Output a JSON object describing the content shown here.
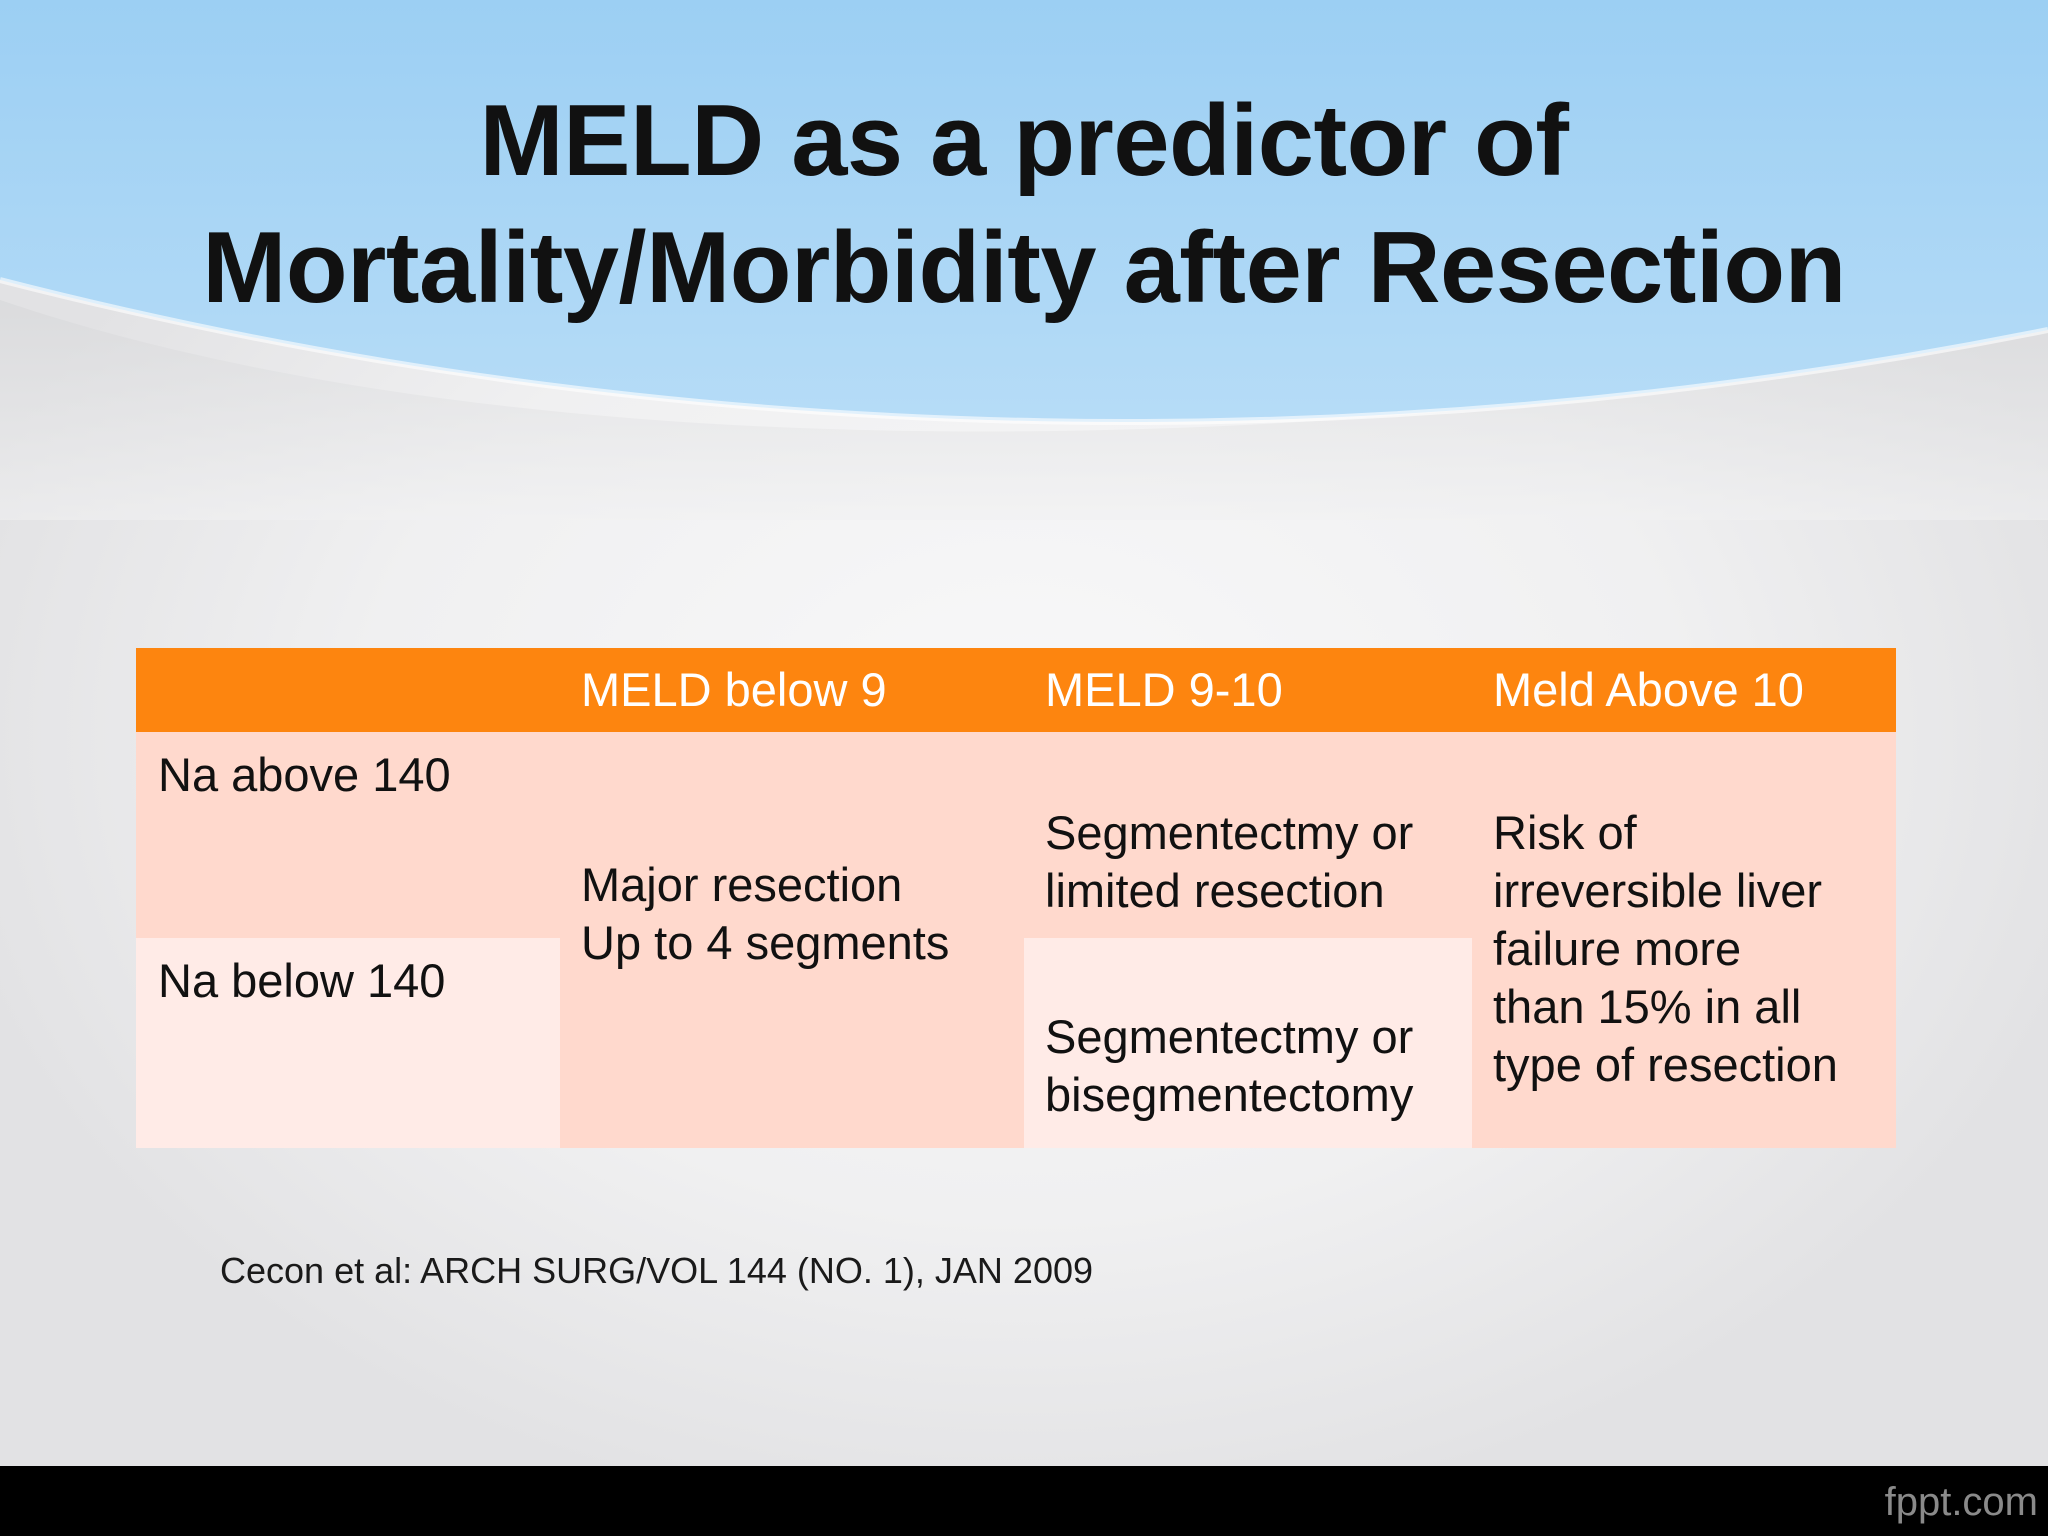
{
  "slide": {
    "title_line1": "MELD as a predictor of",
    "title_line2": "Mortality/Morbidity after Resection",
    "accent_color": "#fd850f",
    "header_bg_color": "#a9d5f7"
  },
  "table": {
    "columns": [
      "",
      "MELD below 9",
      "MELD 9-10",
      "Meld Above 10"
    ],
    "rows": [
      {
        "label": "Na above 140"
      },
      {
        "label": "Na below 140"
      }
    ],
    "meld_below_9": [
      "Major resection",
      "Up to 4 segments"
    ],
    "meld_9_10_na_above": [
      "Segmentectmy or",
      "limited resection"
    ],
    "meld_9_10_na_below": [
      "Segmentectmy or",
      "bisegmentectomy"
    ],
    "meld_above_10": [
      "Risk of",
      "irreversible liver",
      "failure  more",
      "than 15% in all",
      "type of resection"
    ]
  },
  "citation": "Cecon  et al: ARCH SURG/VOL 144 (NO. 1), JAN 2009",
  "footer": {
    "brand": "fppt.com"
  }
}
